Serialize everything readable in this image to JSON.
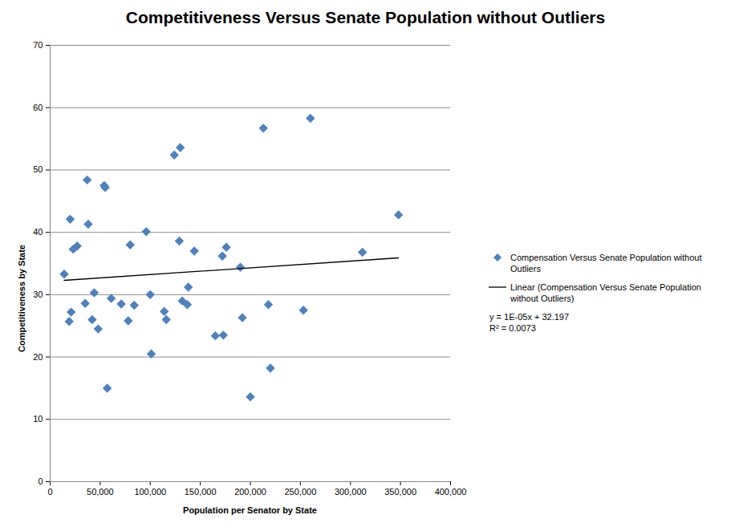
{
  "chart_data": {
    "type": "scatter",
    "title": "Competitiveness Versus Senate Population without Outliers",
    "x_label": "Population per Senator by State",
    "y_label": "Competitiveness by State",
    "xlim": [
      0,
      400000
    ],
    "ylim": [
      0,
      70
    ],
    "xticks": [
      0,
      {
        "value": 50000,
        "label": "50,000"
      },
      {
        "value": 100000,
        "label": "100,000"
      },
      {
        "value": 150000,
        "label": "150,000"
      },
      {
        "value": 200000,
        "label": "200,000"
      },
      {
        "value": 250000,
        "label": "250,000"
      },
      {
        "value": 300000,
        "label": "300,000"
      },
      {
        "value": 350000,
        "label": "350,000"
      },
      {
        "value": 400000,
        "label": "400,000"
      }
    ],
    "yticks": [
      0,
      10,
      20,
      30,
      40,
      50,
      60,
      70
    ],
    "grid": "y",
    "legend": "right",
    "annotations": [
      "y = 1E-05x + 32.197",
      "R² = 0.0073"
    ],
    "series": [
      {
        "name": "Compensation Versus Senate Population without Outliers",
        "type": "scatter",
        "marker": "diamond",
        "color": "#4f81bd",
        "x": [
          14000,
          19000,
          20000,
          21000,
          23000,
          27000,
          35000,
          37000,
          38000,
          42000,
          44000,
          48000,
          54000,
          55000,
          57000,
          61000,
          71000,
          78000,
          80000,
          84000,
          96000,
          100000,
          101000,
          114000,
          116000,
          124000,
          129000,
          130000,
          132000,
          137000,
          138000,
          144000,
          165000,
          172000,
          173000,
          176000,
          190000,
          192000,
          200000,
          213000,
          218000,
          220000,
          253000,
          260000,
          312000,
          348000
        ],
        "values": [
          33.3,
          25.7,
          42.1,
          27.2,
          37.3,
          37.8,
          28.6,
          48.4,
          41.3,
          26.0,
          30.3,
          24.5,
          47.5,
          47.2,
          15.0,
          29.4,
          28.5,
          25.8,
          38.0,
          28.3,
          40.1,
          30.0,
          20.5,
          27.3,
          26.0,
          52.4,
          38.6,
          53.6,
          29.0,
          28.4,
          31.2,
          37.0,
          23.4,
          36.2,
          23.5,
          37.6,
          34.4,
          26.3,
          13.6,
          56.7,
          28.4,
          18.2,
          27.5,
          58.3,
          36.8,
          42.8
        ]
      },
      {
        "name": "Linear (Compensation Versus Senate Population without Outliers)",
        "type": "line",
        "line_style": "solid",
        "color": "#000000",
        "x": [
          14000,
          348000
        ],
        "values": [
          32.3,
          35.9
        ]
      }
    ]
  }
}
